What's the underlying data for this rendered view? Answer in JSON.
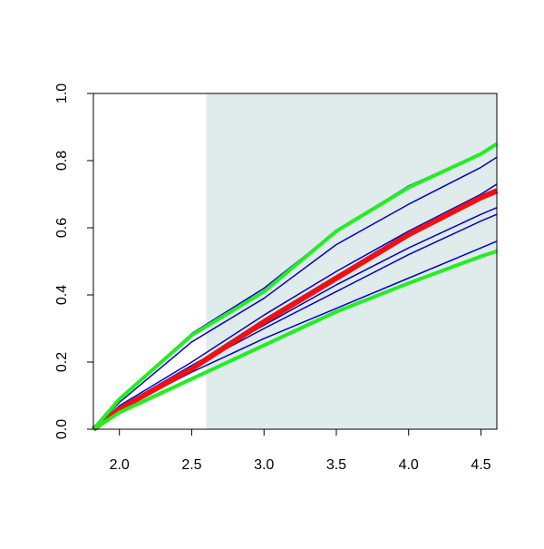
{
  "chart_data": {
    "type": "line",
    "x": [
      1.82,
      2.0,
      2.5,
      3.0,
      3.5,
      4.0,
      4.5,
      4.61
    ],
    "series": [
      {
        "color": "#0000cd",
        "width": 1.5,
        "values": [
          0,
          0.09,
          0.285,
          0.42,
          0.59,
          0.725,
          0.82,
          0.85
        ]
      },
      {
        "color": "#0000cd",
        "width": 1.5,
        "values": [
          0,
          0.08,
          0.26,
          0.39,
          0.55,
          0.67,
          0.78,
          0.81
        ]
      },
      {
        "color": "#0000cd",
        "width": 1.5,
        "values": [
          0,
          0.07,
          0.2,
          0.34,
          0.47,
          0.59,
          0.7,
          0.73
        ]
      },
      {
        "color": "#0000cd",
        "width": 1.5,
        "values": [
          0,
          0.065,
          0.19,
          0.31,
          0.43,
          0.54,
          0.64,
          0.66
        ]
      },
      {
        "color": "#0000cd",
        "width": 1.5,
        "values": [
          0,
          0.065,
          0.185,
          0.3,
          0.41,
          0.52,
          0.62,
          0.64
        ]
      },
      {
        "color": "#0000cd",
        "width": 1.5,
        "values": [
          0,
          0.06,
          0.17,
          0.27,
          0.36,
          0.45,
          0.54,
          0.56
        ]
      },
      {
        "color": "#ee1111",
        "width": 6,
        "values": [
          0,
          0.06,
          0.18,
          0.32,
          0.45,
          0.58,
          0.69,
          0.71
        ]
      },
      {
        "color": "#22ee22",
        "width": 4,
        "values": [
          0,
          0.09,
          0.28,
          0.41,
          0.59,
          0.72,
          0.82,
          0.85
        ]
      },
      {
        "color": "#22ee22",
        "width": 4,
        "values": [
          0,
          0.05,
          0.15,
          0.25,
          0.35,
          0.435,
          0.515,
          0.53
        ]
      }
    ],
    "shaded_x": [
      2.6,
      4.61
    ],
    "shade_color": "#dfeceb",
    "xlim": [
      1.82,
      4.61
    ],
    "ylim": [
      0,
      1
    ],
    "xticks": [
      {
        "value": 2,
        "label": "2.0"
      },
      2.5,
      {
        "value": 3,
        "label": "3.0"
      },
      3.5,
      {
        "value": 4,
        "label": "4.0"
      },
      4.5
    ],
    "yticks": [
      {
        "value": 0,
        "label": "0.0"
      },
      0.2,
      0.4,
      0.6,
      0.8,
      {
        "value": 1,
        "label": "1.0"
      }
    ]
  }
}
